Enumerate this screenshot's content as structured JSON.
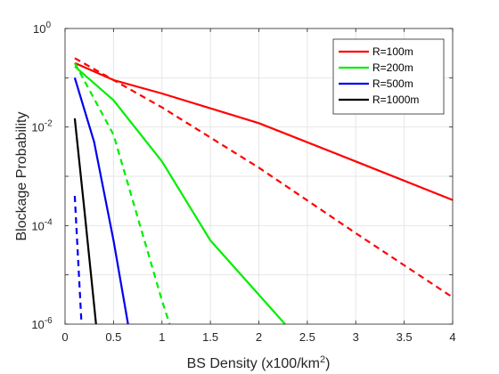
{
  "chart_data": {
    "type": "line",
    "xlabel": "BS Density (x100/km",
    "xlabel_sup": "2",
    "xlabel_end": ")",
    "ylabel": "Blockage Probability",
    "xlim": [
      0,
      4
    ],
    "ylim": [
      1e-06,
      1
    ],
    "yscale": "log",
    "grid": true,
    "legend_position": "top-right",
    "x_ticks": [
      "0",
      "0.5",
      "1",
      "1.5",
      "2",
      "2.5",
      "3",
      "3.5",
      "4"
    ],
    "y_ticks": [
      {
        "value": 1e-06,
        "base": "10",
        "exp": "-6"
      },
      {
        "value": 0.0001,
        "base": "10",
        "exp": "-4"
      },
      {
        "value": 0.01,
        "base": "10",
        "exp": "-2"
      },
      {
        "value": 1,
        "base": "10",
        "exp": "0"
      }
    ],
    "series": [
      {
        "name": "R=100m",
        "color": "#ff0000",
        "style": "solid",
        "x": [
          0.1,
          0.5,
          1.0,
          2.0,
          3.0,
          4.0
        ],
        "y": [
          0.2,
          0.09,
          0.048,
          0.012,
          0.002,
          0.00033
        ]
      },
      {
        "name": "",
        "color": "#ff0000",
        "style": "dashed",
        "x": [
          0.1,
          0.5,
          1.0,
          2.0,
          3.0,
          4.0
        ],
        "y": [
          0.25,
          0.09,
          0.025,
          0.0015,
          7e-05,
          3.5e-06
        ]
      },
      {
        "name": "R=200m",
        "color": "#00ee00",
        "style": "solid",
        "x": [
          0.1,
          0.5,
          1.0,
          1.5,
          2.27
        ],
        "y": [
          0.17,
          0.035,
          0.002,
          5e-05,
          1e-06
        ]
      },
      {
        "name": "",
        "color": "#00ee00",
        "style": "dashed",
        "x": [
          0.1,
          0.5,
          1.0,
          1.08
        ],
        "y": [
          0.2,
          0.007,
          3e-06,
          1e-06
        ]
      },
      {
        "name": "R=500m",
        "color": "#0000ee",
        "style": "solid",
        "x": [
          0.1,
          0.3,
          0.5,
          0.65
        ],
        "y": [
          0.1,
          0.005,
          5e-05,
          1e-06
        ]
      },
      {
        "name": "",
        "color": "#0000ee",
        "style": "dashed",
        "x": [
          0.1,
          0.17
        ],
        "y": [
          0.0004,
          1e-06
        ]
      },
      {
        "name": "R=1000m",
        "color": "#000000",
        "style": "solid",
        "x": [
          0.1,
          0.2,
          0.32
        ],
        "y": [
          0.015,
          0.0002,
          1e-06
        ]
      }
    ]
  }
}
